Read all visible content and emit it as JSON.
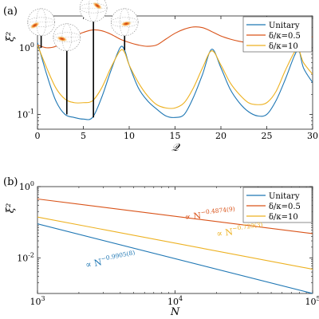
{
  "chart_data": [
    {
      "panel_label": "(a)",
      "type": "line",
      "xlabel": "𝒬",
      "ylabel": "ξ²",
      "xscale": "linear",
      "yscale": "log",
      "xlim": [
        0,
        30
      ],
      "ylim": [
        0.06,
        3
      ],
      "xticks": [
        "0",
        "5",
        "10",
        "15",
        "20",
        "25",
        "30"
      ],
      "yticks": [
        {
          "base": "10",
          "exp": "-1",
          "value": 0.1
        },
        {
          "base": "10",
          "exp": "0",
          "value": 1
        }
      ],
      "legend_position": "top-right",
      "series": [
        {
          "name": "Unitary",
          "color": "#1f77b4",
          "x": [
            0,
            1,
            2,
            3,
            4,
            5,
            6,
            7,
            8,
            9,
            9.5,
            10,
            11,
            12,
            13,
            14,
            15,
            16,
            17,
            18,
            19,
            20,
            21,
            22,
            23,
            24,
            25,
            26,
            27,
            28,
            28.5,
            29,
            30
          ],
          "y": [
            1.2,
            0.4,
            0.16,
            0.1,
            0.09,
            0.085,
            0.09,
            0.18,
            0.45,
            1.0,
            0.92,
            0.55,
            0.25,
            0.16,
            0.12,
            0.095,
            0.09,
            0.1,
            0.18,
            0.4,
            0.95,
            0.5,
            0.24,
            0.15,
            0.11,
            0.095,
            0.1,
            0.16,
            0.33,
            0.75,
            0.92,
            0.5,
            0.3
          ]
        },
        {
          "name": "δ/κ=0.5",
          "color": "#d95319",
          "x": [
            0,
            1,
            2,
            3,
            4,
            5,
            6,
            7,
            8,
            9,
            10,
            11,
            12,
            13,
            14,
            15,
            16,
            17,
            18,
            19,
            20,
            21,
            22,
            23,
            24,
            25,
            26,
            27,
            28,
            29,
            30
          ],
          "y": [
            1.1,
            1.0,
            1.05,
            1.25,
            1.5,
            1.7,
            1.85,
            1.8,
            1.6,
            1.35,
            1.2,
            1.1,
            1.05,
            1.1,
            1.35,
            1.65,
            1.9,
            2.05,
            2.0,
            1.75,
            1.5,
            1.35,
            1.25,
            1.2,
            1.3,
            1.5,
            1.7,
            1.8,
            1.75,
            1.5,
            1.45
          ]
        },
        {
          "name": "δ/κ=10",
          "color": "#edb120",
          "x": [
            0,
            1,
            2,
            3,
            4,
            5,
            6,
            7,
            8,
            9,
            9.5,
            10,
            11,
            12,
            13,
            14,
            15,
            16,
            17,
            18,
            19,
            20,
            21,
            22,
            23,
            24,
            25,
            26,
            27,
            28,
            28.5,
            29,
            30
          ],
          "y": [
            1.1,
            0.5,
            0.25,
            0.17,
            0.15,
            0.15,
            0.16,
            0.25,
            0.5,
            0.9,
            0.85,
            0.55,
            0.3,
            0.19,
            0.14,
            0.125,
            0.125,
            0.15,
            0.25,
            0.5,
            0.9,
            0.55,
            0.3,
            0.2,
            0.15,
            0.14,
            0.15,
            0.22,
            0.45,
            0.85,
            0.92,
            0.6,
            0.4
          ]
        }
      ],
      "markers": [
        {
          "x": 0.4,
          "y_top": 1.6,
          "y_bottom": 1.0
        },
        {
          "x": 3.2,
          "y_top": 0.95,
          "y_bottom": 0.1
        },
        {
          "x": 6.1,
          "y_top": 2.6,
          "y_bottom": 0.09
        },
        {
          "x": 9.5,
          "y_top": 1.6,
          "y_bottom": 0.92
        }
      ]
    },
    {
      "panel_label": "(b)",
      "type": "line",
      "xlabel": "N",
      "ylabel": "ξ²",
      "xscale": "log",
      "yscale": "log",
      "xlim": [
        1000,
        100000
      ],
      "ylim": [
        0.001,
        1
      ],
      "xticks": [
        {
          "base": "10",
          "exp": "3",
          "value": 1000
        },
        {
          "base": "10",
          "exp": "4",
          "value": 10000
        },
        {
          "base": "10",
          "exp": "5",
          "value": 100000
        }
      ],
      "yticks": [
        {
          "base": "10",
          "exp": "-2",
          "value": 0.01
        },
        {
          "base": "10",
          "exp": "0",
          "value": 1
        }
      ],
      "legend_position": "top-right",
      "series": [
        {
          "name": "Unitary",
          "color": "#1f77b4",
          "x": [
            1000,
            100000
          ],
          "y": [
            0.09,
            0.001
          ]
        },
        {
          "name": "δ/κ=0.5",
          "color": "#d95319",
          "x": [
            1000,
            100000
          ],
          "y": [
            0.45,
            0.048
          ]
        },
        {
          "name": "δ/κ=10",
          "color": "#edb120",
          "x": [
            1000,
            100000
          ],
          "y": [
            0.14,
            0.0048
          ]
        }
      ],
      "annotations": [
        {
          "prefix": "∝ N",
          "exponent": "−0.4874(9)",
          "color": "#d95319"
        },
        {
          "prefix": "∝ N",
          "exponent": "−0.729(3)",
          "color": "#edb120"
        },
        {
          "prefix": "∝ N",
          "exponent": "−0.9905(8)",
          "color": "#1f77b4"
        }
      ]
    }
  ]
}
